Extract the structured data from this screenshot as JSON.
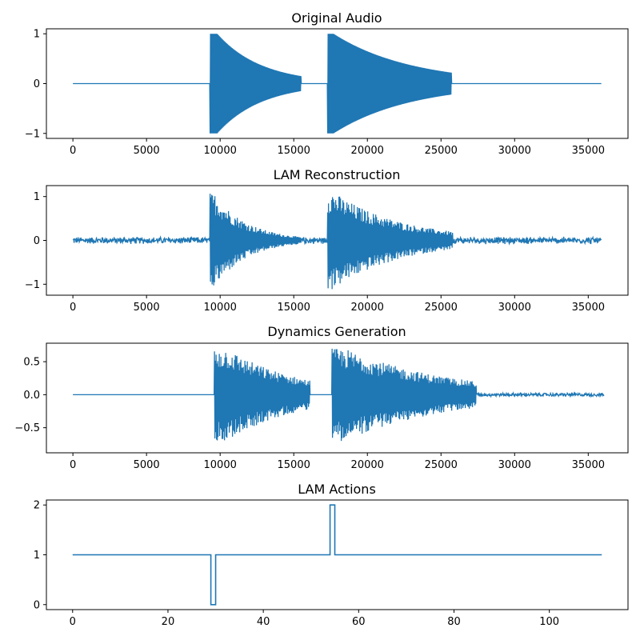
{
  "chart_data": [
    {
      "type": "line",
      "title": "Original Audio",
      "xlabel": "",
      "ylabel": "",
      "xlim": [
        -1800,
        37700
      ],
      "ylim": [
        -1.1,
        1.1
      ],
      "xticks": [
        0,
        5000,
        10000,
        15000,
        20000,
        25000,
        30000,
        35000
      ],
      "xtick_labels": [
        "0",
        "5000",
        "10000",
        "15000",
        "20000",
        "25000",
        "30000",
        "35000"
      ],
      "yticks": [
        -1,
        0,
        1
      ],
      "ytick_labels": [
        "−1",
        "0",
        "1"
      ],
      "color": "#1f77b4",
      "x_end": 35900,
      "segments": [
        {
          "start": 9300,
          "end": 15500,
          "peak": 1.0,
          "end_amp": 0.15,
          "hold": 500
        },
        {
          "start": 17300,
          "end": 25700,
          "peak": 1.0,
          "end_amp": 0.22,
          "hold": 400
        }
      ],
      "noise_floor": 0.0
    },
    {
      "type": "line",
      "title": "LAM Reconstruction",
      "xlabel": "",
      "ylabel": "",
      "xlim": [
        -1800,
        37700
      ],
      "ylim": [
        -1.25,
        1.25
      ],
      "xticks": [
        0,
        5000,
        10000,
        15000,
        20000,
        25000,
        30000,
        35000
      ],
      "xtick_labels": [
        "0",
        "5000",
        "10000",
        "15000",
        "20000",
        "25000",
        "30000",
        "35000"
      ],
      "yticks": [
        -1,
        0,
        1
      ],
      "ytick_labels": [
        "−1",
        "0",
        "1"
      ],
      "color": "#1f77b4",
      "x_end": 35900,
      "segments": [
        {
          "start": 9300,
          "end": 15500,
          "peak": 1.08,
          "end_amp": 0.08,
          "hold": 300
        },
        {
          "start": 17300,
          "end": 25800,
          "peak": 1.13,
          "end_amp": 0.2,
          "hold": 300
        }
      ],
      "noise_floor": 0.09
    },
    {
      "type": "line",
      "title": "Dynamics Generation",
      "xlabel": "",
      "ylabel": "",
      "xlim": [
        -1800,
        37700
      ],
      "ylim": [
        -0.88,
        0.78
      ],
      "xticks": [
        0,
        5000,
        10000,
        15000,
        20000,
        25000,
        30000,
        35000
      ],
      "xtick_labels": [
        "0",
        "5000",
        "10000",
        "15000",
        "20000",
        "25000",
        "30000",
        "35000"
      ],
      "yticks": [
        -0.5,
        0.0,
        0.5
      ],
      "ytick_labels": [
        "−0.5",
        "0.0",
        "0.5"
      ],
      "color": "#1f77b4",
      "x_end": 36100,
      "segments": [
        {
          "start": 9600,
          "end": 16100,
          "peak": 0.7,
          "end_amp": 0.22,
          "hold": 900
        },
        {
          "start": 17600,
          "end": 27400,
          "peak": 0.7,
          "end_amp": 0.2,
          "hold": 900
        }
      ],
      "tail_noise": {
        "start": 27400,
        "end": 36100,
        "amp": 0.03
      },
      "noise_floor": 0.0
    },
    {
      "type": "step",
      "title": "LAM Actions",
      "xlabel": "",
      "ylabel": "",
      "xlim": [
        -5.5,
        116.5
      ],
      "ylim": [
        -0.1,
        2.1
      ],
      "xticks": [
        0,
        20,
        40,
        60,
        80,
        100
      ],
      "xtick_labels": [
        "0",
        "20",
        "40",
        "60",
        "80",
        "100"
      ],
      "yticks": [
        0,
        1,
        2
      ],
      "ytick_labels": [
        "0",
        "1",
        "2"
      ],
      "color": "#1f77b4",
      "x": [
        0,
        29,
        29,
        30,
        30,
        54,
        54,
        55,
        55,
        111
      ],
      "y": [
        1,
        1,
        0,
        0,
        1,
        1,
        2,
        2,
        1,
        1
      ]
    }
  ]
}
